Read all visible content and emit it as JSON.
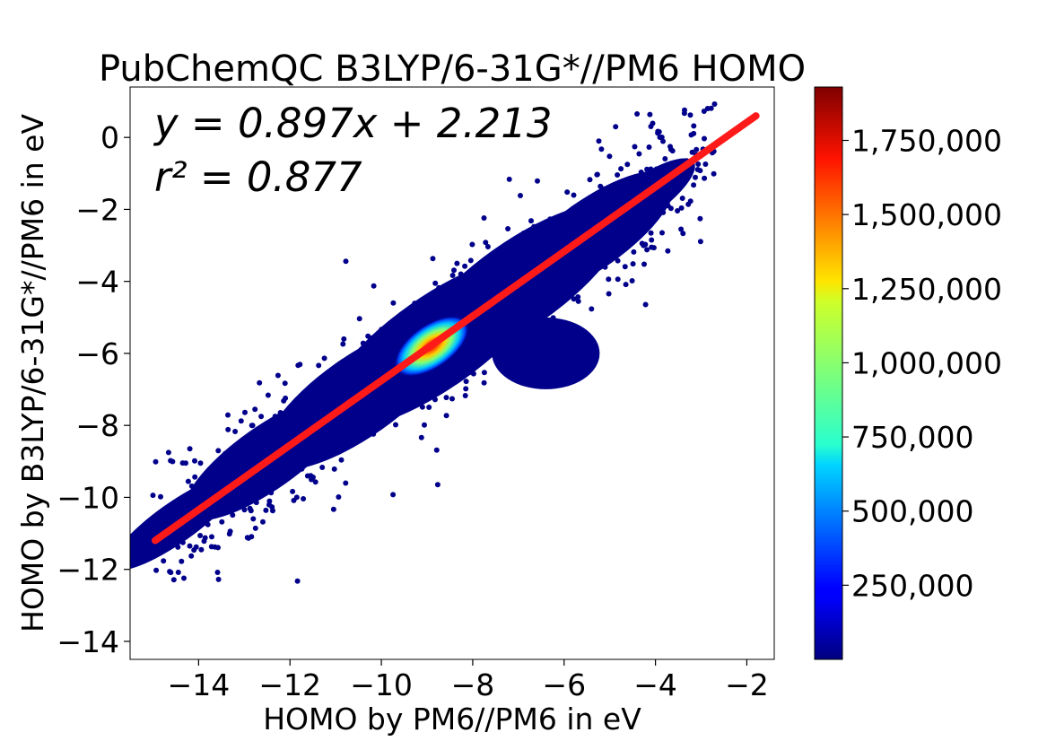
{
  "chart_data": {
    "type": "scatter",
    "title": "PubChemQC B3LYP/6-31G*//PM6 HOMO",
    "xlabel": "HOMO by PM6//PM6 in eV",
    "ylabel": "HOMO by B3LYP/6-31G*//PM6 in eV",
    "xlim": [
      -15.5,
      -1.4
    ],
    "ylim": [
      -14.5,
      1.4
    ],
    "x_ticks": [
      -14,
      -12,
      -10,
      -8,
      -6,
      -4,
      -2
    ],
    "y_ticks": [
      -14,
      -12,
      -10,
      -8,
      -6,
      -4,
      -2,
      0
    ],
    "x_tick_labels": [
      "−14",
      "−12",
      "−10",
      "−8",
      "−6",
      "−4",
      "−2"
    ],
    "y_tick_labels": [
      "−14",
      "−12",
      "−10",
      "−8",
      "−6",
      "−4",
      "−2",
      "0"
    ],
    "grid": false,
    "fit": {
      "slope": 0.897,
      "intercept": 2.213,
      "r2": 0.877,
      "x_range": [
        -14.95,
        -1.8
      ]
    },
    "annotation_line1": "y = 0.897x + 2.213",
    "annotation_line2": "r² = 0.877",
    "density_peak": {
      "x": -8.9,
      "y": -5.8
    },
    "colorbar": {
      "colormap": "jet",
      "range": [
        0,
        1930000
      ],
      "ticks": [
        250000,
        500000,
        750000,
        1000000,
        1250000,
        1500000,
        1750000
      ],
      "tick_labels": [
        "250,000",
        "500,000",
        "750,000",
        "1,000,000",
        "1,250,000",
        "1,500,000",
        "1,750,000"
      ]
    },
    "colors": {
      "points": "#00008b",
      "fit_line": "#ff1a1a"
    }
  }
}
